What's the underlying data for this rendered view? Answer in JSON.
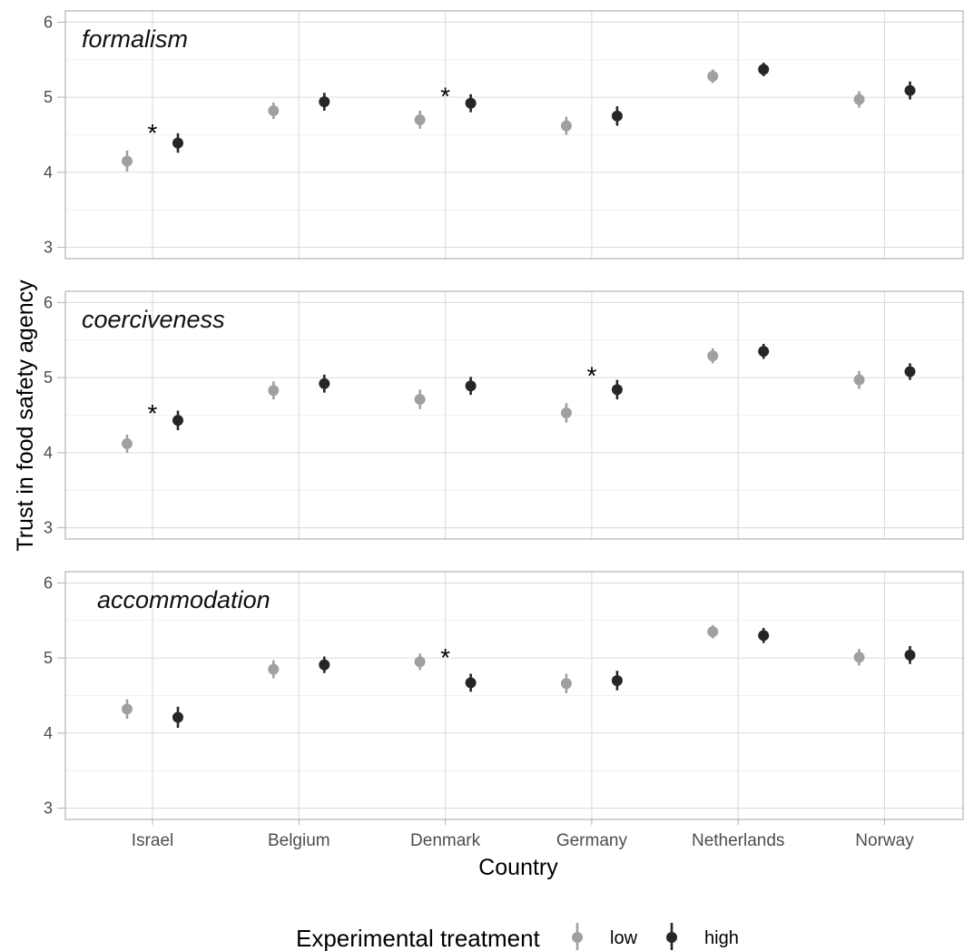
{
  "chart_data": {
    "type": "scatter",
    "xlabel": "Country",
    "ylabel": "Trust in food safety agency",
    "categories": [
      "Israel",
      "Belgium",
      "Denmark",
      "Germany",
      "Netherlands",
      "Norway"
    ],
    "ylim": [
      2.85,
      6.15
    ],
    "yticks": [
      3,
      4,
      5,
      6
    ],
    "grid": true,
    "legend": {
      "title": "Experimental treatment",
      "position": "bottom",
      "items": [
        {
          "label": "low",
          "color": "#a0a0a0"
        },
        {
          "label": "high",
          "color": "#262626"
        }
      ]
    },
    "panels": [
      {
        "title": "formalism",
        "series": [
          {
            "name": "low",
            "color": "#a0a0a0",
            "values": [
              4.15,
              4.82,
              4.7,
              4.62,
              5.28,
              4.97
            ],
            "lower": [
              4.01,
              4.71,
              4.58,
              4.5,
              5.19,
              4.86
            ],
            "upper": [
              4.29,
              4.93,
              4.82,
              4.74,
              5.37,
              5.08
            ]
          },
          {
            "name": "high",
            "color": "#262626",
            "values": [
              4.39,
              4.94,
              4.92,
              4.75,
              5.37,
              5.09
            ],
            "lower": [
              4.26,
              4.82,
              4.8,
              4.62,
              5.28,
              4.97
            ],
            "upper": [
              4.52,
              5.06,
              5.04,
              4.88,
              5.46,
              5.21
            ]
          }
        ],
        "annotations": [
          {
            "text": "*",
            "category": "Israel",
            "y": 4.58
          },
          {
            "text": "*",
            "category": "Denmark",
            "y": 5.07
          }
        ]
      },
      {
        "title": "coerciveness",
        "series": [
          {
            "name": "low",
            "color": "#a0a0a0",
            "values": [
              4.12,
              4.83,
              4.71,
              4.53,
              5.29,
              4.97
            ],
            "lower": [
              4.0,
              4.71,
              4.58,
              4.4,
              5.19,
              4.85
            ],
            "upper": [
              4.24,
              4.95,
              4.84,
              4.66,
              5.39,
              5.09
            ]
          },
          {
            "name": "high",
            "color": "#262626",
            "values": [
              4.43,
              4.92,
              4.89,
              4.84,
              5.35,
              5.08
            ],
            "lower": [
              4.3,
              4.8,
              4.77,
              4.71,
              5.25,
              4.97
            ],
            "upper": [
              4.56,
              5.04,
              5.01,
              4.97,
              5.45,
              5.19
            ]
          }
        ],
        "annotations": [
          {
            "text": "*",
            "category": "Israel",
            "y": 4.58
          },
          {
            "text": "*",
            "category": "Germany",
            "y": 5.08
          }
        ]
      },
      {
        "title": "accommodation",
        "series": [
          {
            "name": "low",
            "color": "#a0a0a0",
            "values": [
              4.32,
              4.85,
              4.95,
              4.66,
              5.35,
              5.01
            ],
            "lower": [
              4.19,
              4.73,
              4.84,
              4.53,
              5.26,
              4.9
            ],
            "upper": [
              4.45,
              4.97,
              5.06,
              4.79,
              5.44,
              5.12
            ]
          },
          {
            "name": "high",
            "color": "#262626",
            "values": [
              4.21,
              4.91,
              4.67,
              4.7,
              5.3,
              5.04
            ],
            "lower": [
              4.07,
              4.8,
              4.55,
              4.57,
              5.2,
              4.92
            ],
            "upper": [
              4.35,
              5.02,
              4.79,
              4.83,
              5.4,
              5.16
            ]
          }
        ],
        "annotations": [
          {
            "text": "*",
            "category": "Denmark",
            "y": 5.06
          }
        ]
      }
    ]
  }
}
